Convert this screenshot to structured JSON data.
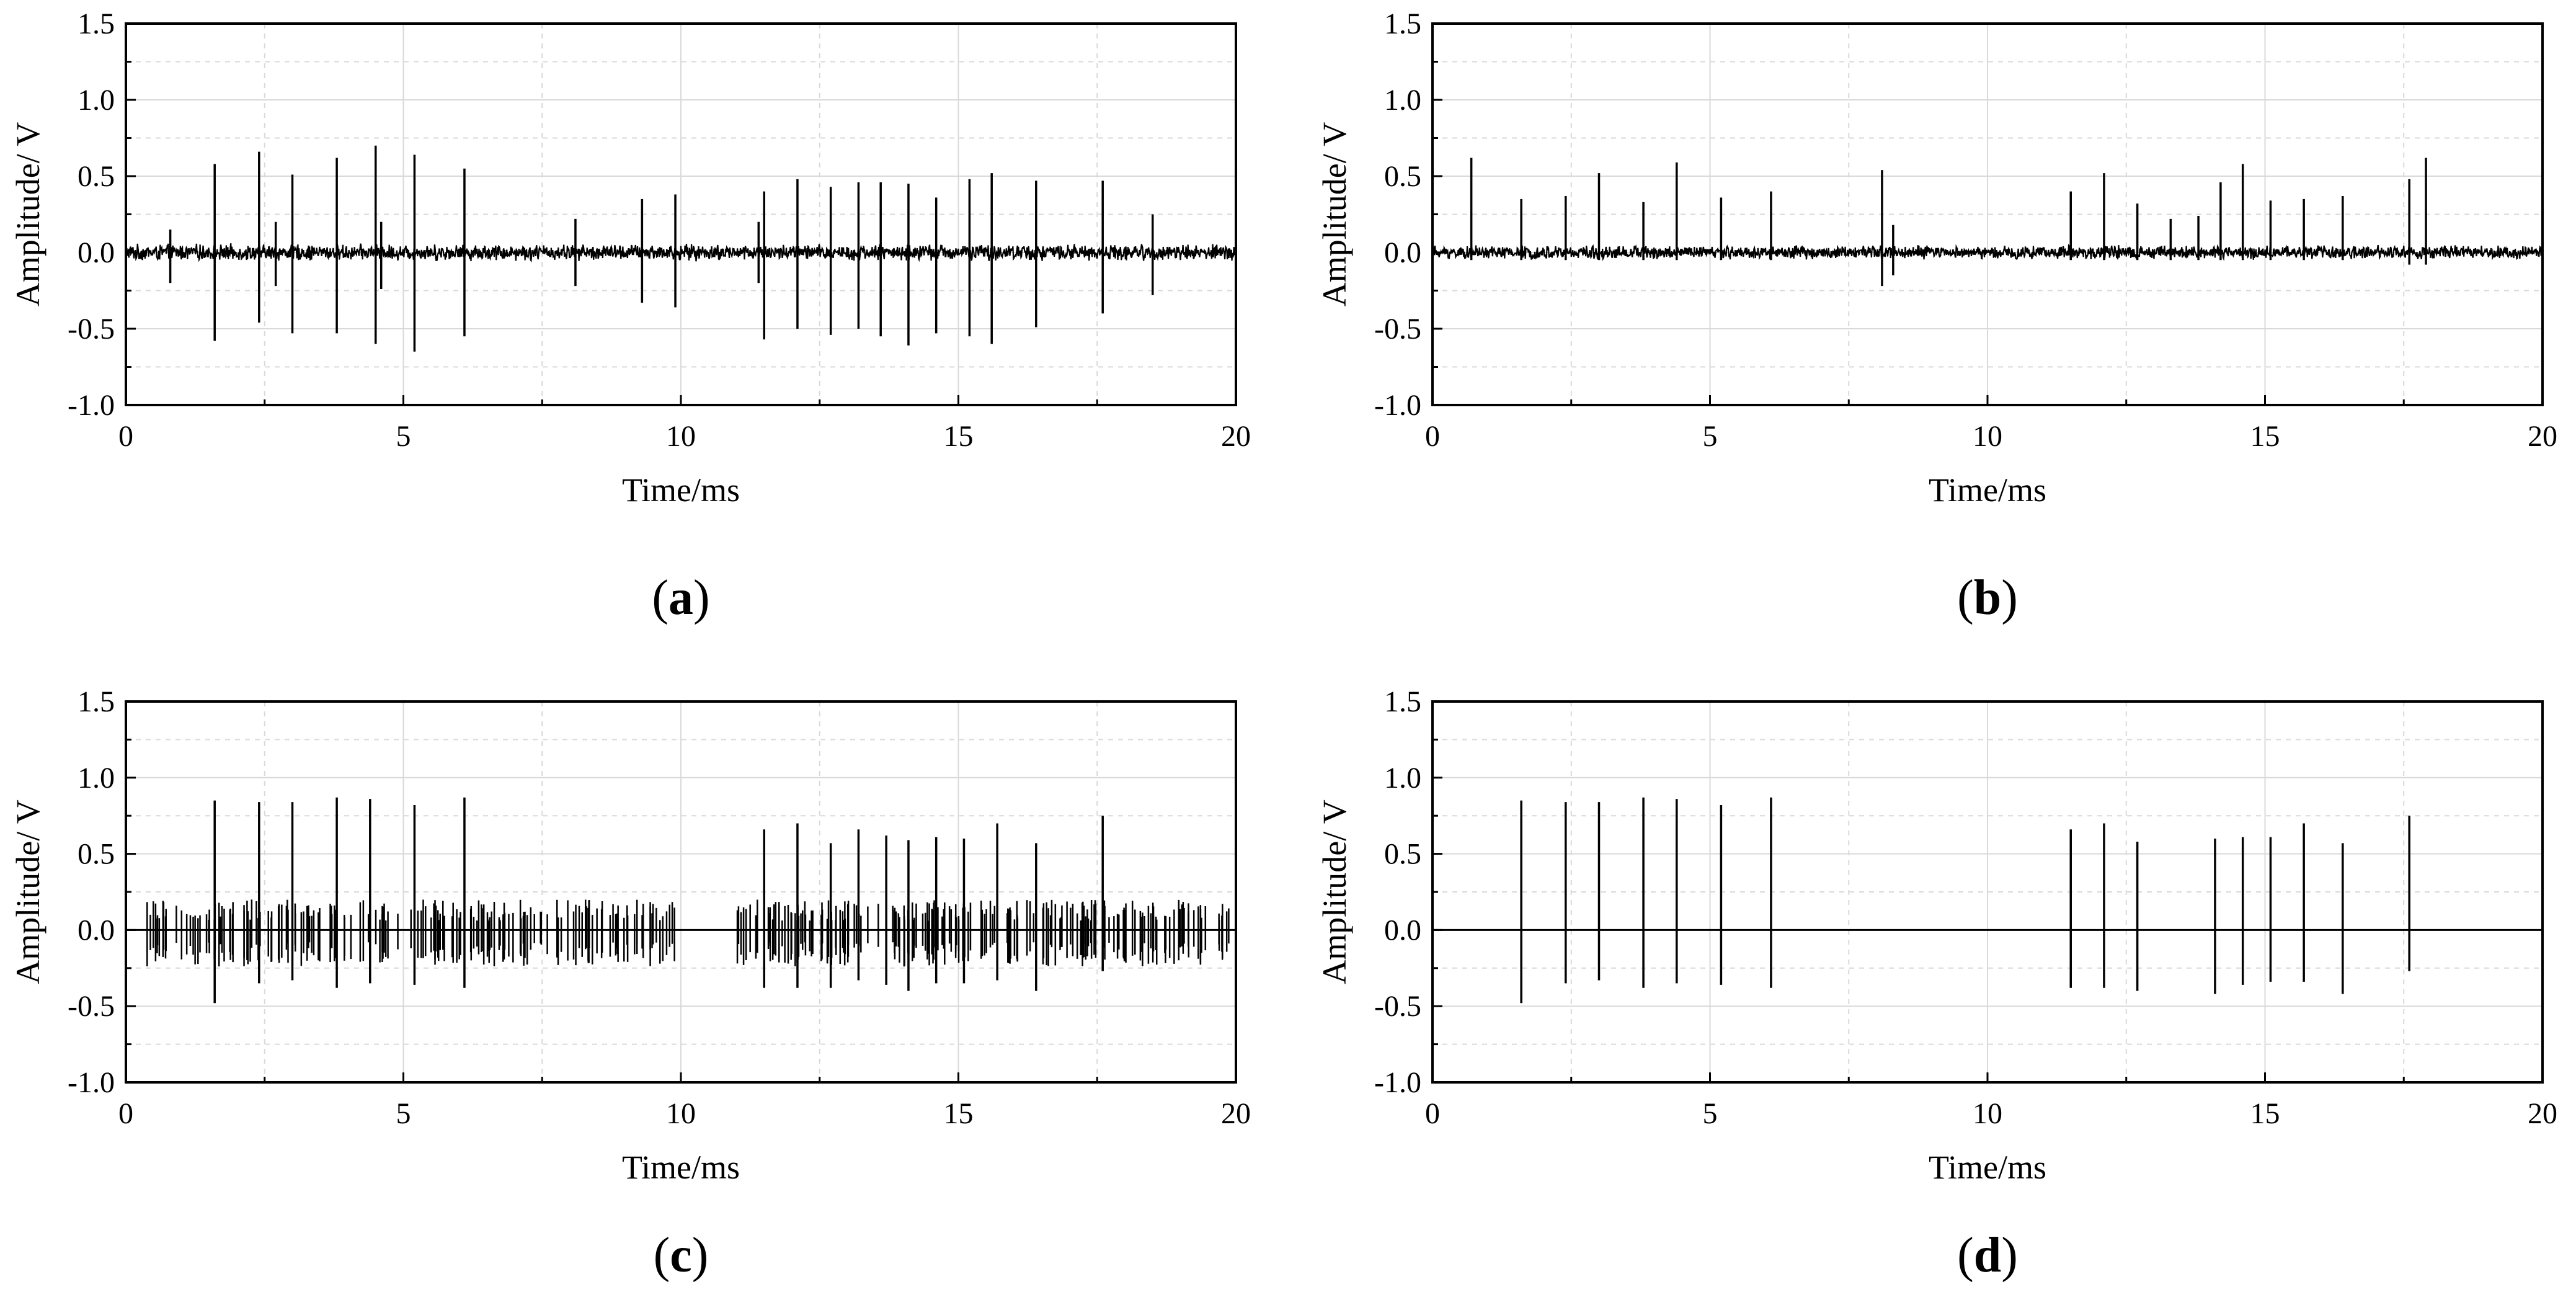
{
  "chart_data": [
    {
      "panel": "a",
      "caption": "a",
      "type": "line",
      "xlabel": "Time/ms",
      "ylabel": "Amplitude/ V",
      "xlim": [
        0,
        20
      ],
      "ylim": [
        -1.0,
        1.5
      ],
      "xticks": [
        "0",
        "5",
        "10",
        "15",
        "20"
      ],
      "yticks": [
        "1.5",
        "1.0",
        "0.5",
        "0.0",
        "-0.5",
        "-1.0"
      ],
      "grid": true,
      "noise_amplitude": 0.06,
      "spikes": [
        {
          "t": 0.8,
          "pos": 0.15,
          "neg": -0.2
        },
        {
          "t": 1.6,
          "pos": 0.58,
          "neg": -0.58
        },
        {
          "t": 2.4,
          "pos": 0.66,
          "neg": -0.46
        },
        {
          "t": 2.7,
          "pos": 0.2,
          "neg": -0.22
        },
        {
          "t": 3.0,
          "pos": 0.51,
          "neg": -0.53
        },
        {
          "t": 3.8,
          "pos": 0.62,
          "neg": -0.53
        },
        {
          "t": 4.5,
          "pos": 0.7,
          "neg": -0.6
        },
        {
          "t": 4.6,
          "pos": 0.2,
          "neg": -0.24
        },
        {
          "t": 5.2,
          "pos": 0.64,
          "neg": -0.65
        },
        {
          "t": 6.1,
          "pos": 0.55,
          "neg": -0.55
        },
        {
          "t": 8.1,
          "pos": 0.22,
          "neg": -0.22
        },
        {
          "t": 9.3,
          "pos": 0.35,
          "neg": -0.33
        },
        {
          "t": 9.9,
          "pos": 0.38,
          "neg": -0.36
        },
        {
          "t": 11.4,
          "pos": 0.2,
          "neg": -0.2
        },
        {
          "t": 11.5,
          "pos": 0.4,
          "neg": -0.57
        },
        {
          "t": 12.1,
          "pos": 0.48,
          "neg": -0.5
        },
        {
          "t": 12.7,
          "pos": 0.43,
          "neg": -0.54
        },
        {
          "t": 13.2,
          "pos": 0.46,
          "neg": -0.5
        },
        {
          "t": 13.6,
          "pos": 0.46,
          "neg": -0.55
        },
        {
          "t": 14.1,
          "pos": 0.45,
          "neg": -0.61
        },
        {
          "t": 14.6,
          "pos": 0.36,
          "neg": -0.53
        },
        {
          "t": 15.2,
          "pos": 0.48,
          "neg": -0.55
        },
        {
          "t": 15.6,
          "pos": 0.52,
          "neg": -0.6
        },
        {
          "t": 16.4,
          "pos": 0.47,
          "neg": -0.49
        },
        {
          "t": 17.6,
          "pos": 0.47,
          "neg": -0.4
        },
        {
          "t": 18.5,
          "pos": 0.25,
          "neg": -0.28
        }
      ]
    },
    {
      "panel": "b",
      "caption": "b",
      "type": "line",
      "xlabel": "Time/ms",
      "ylabel": "Amplitude/ V",
      "xlim": [
        0,
        20
      ],
      "ylim": [
        -1.0,
        1.5
      ],
      "xticks": [
        "0",
        "5",
        "10",
        "15",
        "20"
      ],
      "yticks": [
        "1.5",
        "1.0",
        "0.5",
        "0.0",
        "-0.5",
        "-1.0"
      ],
      "grid": true,
      "noise_amplitude": 0.05,
      "spikes": [
        {
          "t": 0.7,
          "pos": 0.62,
          "neg": -0.05
        },
        {
          "t": 1.6,
          "pos": 0.35,
          "neg": -0.05
        },
        {
          "t": 2.4,
          "pos": 0.37,
          "neg": -0.05
        },
        {
          "t": 3.0,
          "pos": 0.52,
          "neg": -0.05
        },
        {
          "t": 3.8,
          "pos": 0.33,
          "neg": -0.05
        },
        {
          "t": 4.4,
          "pos": 0.59,
          "neg": -0.05
        },
        {
          "t": 5.2,
          "pos": 0.36,
          "neg": -0.05
        },
        {
          "t": 6.1,
          "pos": 0.4,
          "neg": -0.05
        },
        {
          "t": 8.1,
          "pos": 0.54,
          "neg": -0.22
        },
        {
          "t": 8.3,
          "pos": 0.18,
          "neg": -0.15
        },
        {
          "t": 11.5,
          "pos": 0.4,
          "neg": -0.05
        },
        {
          "t": 12.1,
          "pos": 0.52,
          "neg": -0.05
        },
        {
          "t": 12.7,
          "pos": 0.32,
          "neg": -0.05
        },
        {
          "t": 13.3,
          "pos": 0.22,
          "neg": -0.05
        },
        {
          "t": 13.8,
          "pos": 0.24,
          "neg": -0.05
        },
        {
          "t": 14.2,
          "pos": 0.46,
          "neg": -0.05
        },
        {
          "t": 14.6,
          "pos": 0.58,
          "neg": -0.05
        },
        {
          "t": 15.1,
          "pos": 0.34,
          "neg": -0.05
        },
        {
          "t": 15.7,
          "pos": 0.35,
          "neg": -0.05
        },
        {
          "t": 16.4,
          "pos": 0.37,
          "neg": -0.05
        },
        {
          "t": 17.6,
          "pos": 0.48,
          "neg": -0.08
        },
        {
          "t": 17.9,
          "pos": 0.62,
          "neg": -0.08
        }
      ]
    },
    {
      "panel": "c",
      "caption": "c",
      "type": "line",
      "xlabel": "Time/ms",
      "ylabel": "Amplitude/ V",
      "xlim": [
        0,
        20
      ],
      "ylim": [
        -1.0,
        1.5
      ],
      "xticks": [
        "0",
        "5",
        "10",
        "15",
        "20"
      ],
      "yticks": [
        "1.5",
        "1.0",
        "0.5",
        "0.0",
        "-0.5",
        "-1.0"
      ],
      "grid": true,
      "burst_amplitude": 0.2,
      "spikes": [
        {
          "t": 1.6,
          "pos": 0.85,
          "neg": -0.48
        },
        {
          "t": 2.4,
          "pos": 0.84,
          "neg": -0.35
        },
        {
          "t": 3.0,
          "pos": 0.84,
          "neg": -0.33
        },
        {
          "t": 3.8,
          "pos": 0.87,
          "neg": -0.38
        },
        {
          "t": 4.4,
          "pos": 0.86,
          "neg": -0.35
        },
        {
          "t": 5.2,
          "pos": 0.82,
          "neg": -0.36
        },
        {
          "t": 6.1,
          "pos": 0.87,
          "neg": -0.38
        },
        {
          "t": 11.5,
          "pos": 0.66,
          "neg": -0.38
        },
        {
          "t": 12.1,
          "pos": 0.7,
          "neg": -0.38
        },
        {
          "t": 12.7,
          "pos": 0.57,
          "neg": -0.38
        },
        {
          "t": 13.2,
          "pos": 0.66,
          "neg": -0.33
        },
        {
          "t": 13.7,
          "pos": 0.62,
          "neg": -0.36
        },
        {
          "t": 14.1,
          "pos": 0.59,
          "neg": -0.4
        },
        {
          "t": 14.6,
          "pos": 0.61,
          "neg": -0.35
        },
        {
          "t": 15.1,
          "pos": 0.6,
          "neg": -0.35
        },
        {
          "t": 15.7,
          "pos": 0.7,
          "neg": -0.33
        },
        {
          "t": 16.4,
          "pos": 0.57,
          "neg": -0.4
        },
        {
          "t": 17.6,
          "pos": 0.75,
          "neg": -0.27
        }
      ]
    },
    {
      "panel": "d",
      "caption": "d",
      "type": "line",
      "xlabel": "Time/ms",
      "ylabel": "Amplitude/ V",
      "xlim": [
        0,
        20
      ],
      "ylim": [
        -1.0,
        1.5
      ],
      "xticks": [
        "0",
        "5",
        "10",
        "15",
        "20"
      ],
      "yticks": [
        "1.5",
        "1.0",
        "0.5",
        "0.0",
        "-0.5",
        "-1.0"
      ],
      "grid": true,
      "spikes": [
        {
          "t": 1.6,
          "pos": 0.85,
          "neg": -0.48
        },
        {
          "t": 2.4,
          "pos": 0.84,
          "neg": -0.35
        },
        {
          "t": 3.0,
          "pos": 0.84,
          "neg": -0.33
        },
        {
          "t": 3.8,
          "pos": 0.87,
          "neg": -0.38
        },
        {
          "t": 4.4,
          "pos": 0.86,
          "neg": -0.35
        },
        {
          "t": 5.2,
          "pos": 0.82,
          "neg": -0.36
        },
        {
          "t": 6.1,
          "pos": 0.87,
          "neg": -0.38
        },
        {
          "t": 11.5,
          "pos": 0.66,
          "neg": -0.38
        },
        {
          "t": 12.1,
          "pos": 0.7,
          "neg": -0.38
        },
        {
          "t": 12.7,
          "pos": 0.58,
          "neg": -0.4
        },
        {
          "t": 14.1,
          "pos": 0.6,
          "neg": -0.42
        },
        {
          "t": 14.6,
          "pos": 0.61,
          "neg": -0.36
        },
        {
          "t": 15.1,
          "pos": 0.61,
          "neg": -0.34
        },
        {
          "t": 15.7,
          "pos": 0.7,
          "neg": -0.34
        },
        {
          "t": 16.4,
          "pos": 0.57,
          "neg": -0.42
        },
        {
          "t": 17.6,
          "pos": 0.75,
          "neg": -0.27
        }
      ]
    }
  ],
  "colors": {
    "trace": "#000000",
    "grid": "#d9d9d9",
    "axis": "#000000"
  }
}
